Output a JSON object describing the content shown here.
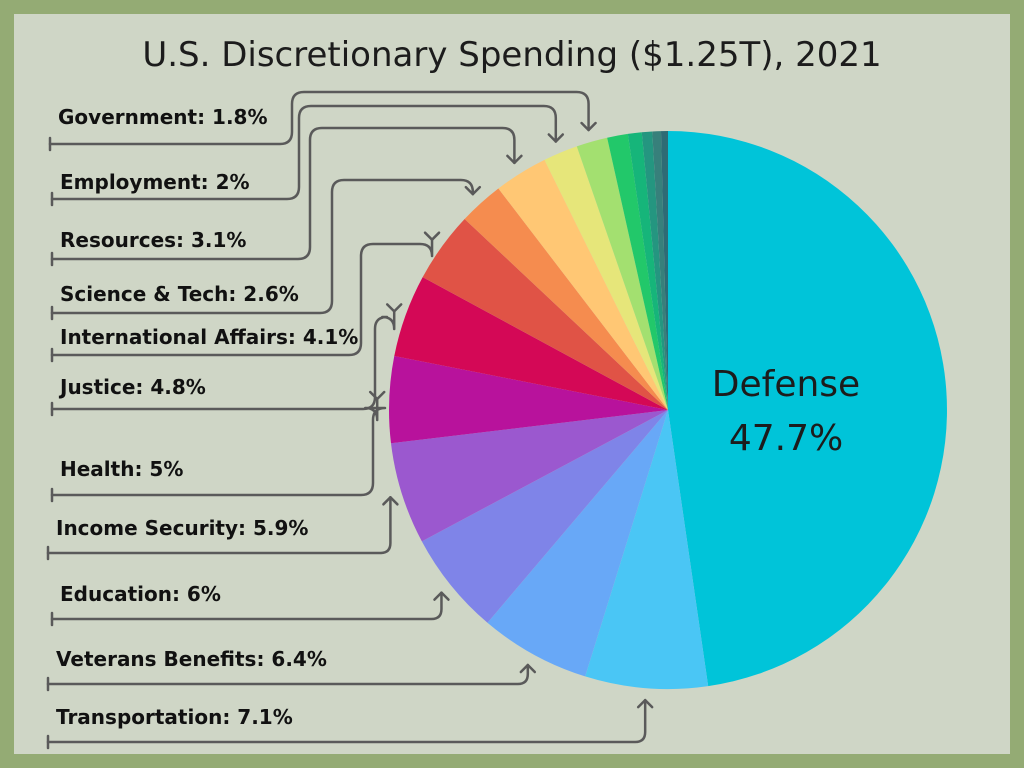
{
  "chart_data": {
    "type": "pie",
    "title": "U.S. Discretionary Spending ($1.25T), 2021",
    "center_label": {
      "name": "Defense",
      "value": "47.7%"
    },
    "slices": [
      {
        "label": "Defense",
        "value": 47.7,
        "color": "#00c4d9"
      },
      {
        "label": "Transportation",
        "value": 7.1,
        "color": "#4ac6f5"
      },
      {
        "label": "Veterans Benefits",
        "value": 6.4,
        "color": "#68a8f7"
      },
      {
        "label": "Education",
        "value": 6.0,
        "color": "#7f84e8"
      },
      {
        "label": "Income Security",
        "value": 5.9,
        "color": "#9b58cf"
      },
      {
        "label": "Health",
        "value": 5.0,
        "color": "#b8129c"
      },
      {
        "label": "Justice",
        "value": 4.8,
        "color": "#d40856"
      },
      {
        "label": "International Affairs",
        "value": 4.1,
        "color": "#e05346"
      },
      {
        "label": "Science & Tech",
        "value": 2.6,
        "color": "#f58c4f"
      },
      {
        "label": "Resources",
        "value": 3.1,
        "color": "#ffc774"
      },
      {
        "label": "Employment",
        "value": 2.0,
        "color": "#e6e67a"
      },
      {
        "label": "Government",
        "value": 1.8,
        "color": "#a3e070"
      },
      {
        "label": "",
        "value": 1.2,
        "color": "#22c86a"
      },
      {
        "label": "",
        "value": 0.8,
        "color": "#16b57a"
      },
      {
        "label": "",
        "value": 0.6,
        "color": "#249680"
      },
      {
        "label": "",
        "value": 0.5,
        "color": "#37807b"
      },
      {
        "label": "",
        "value": 0.4,
        "color": "#2e6b75"
      }
    ],
    "labels": [
      {
        "text": "Government: 1.8%",
        "slice": "Government"
      },
      {
        "text": "Employment: 2%",
        "slice": "Employment"
      },
      {
        "text": "Resources: 3.1%",
        "slice": "Resources"
      },
      {
        "text": "Science & Tech: 2.6%",
        "slice": "Science & Tech"
      },
      {
        "text": "International Affairs: 4.1%",
        "slice": "International Affairs"
      },
      {
        "text": "Justice: 4.8%",
        "slice": "Justice"
      },
      {
        "text": "Health: 5%",
        "slice": "Health"
      },
      {
        "text": "Income Security: 5.9%",
        "slice": "Income Security"
      },
      {
        "text": "Education: 6%",
        "slice": "Education"
      },
      {
        "text": "Veterans Benefits: 6.4%",
        "slice": "Veterans Benefits"
      },
      {
        "text": "Transportation: 7.1%",
        "slice": "Transportation"
      }
    ]
  }
}
